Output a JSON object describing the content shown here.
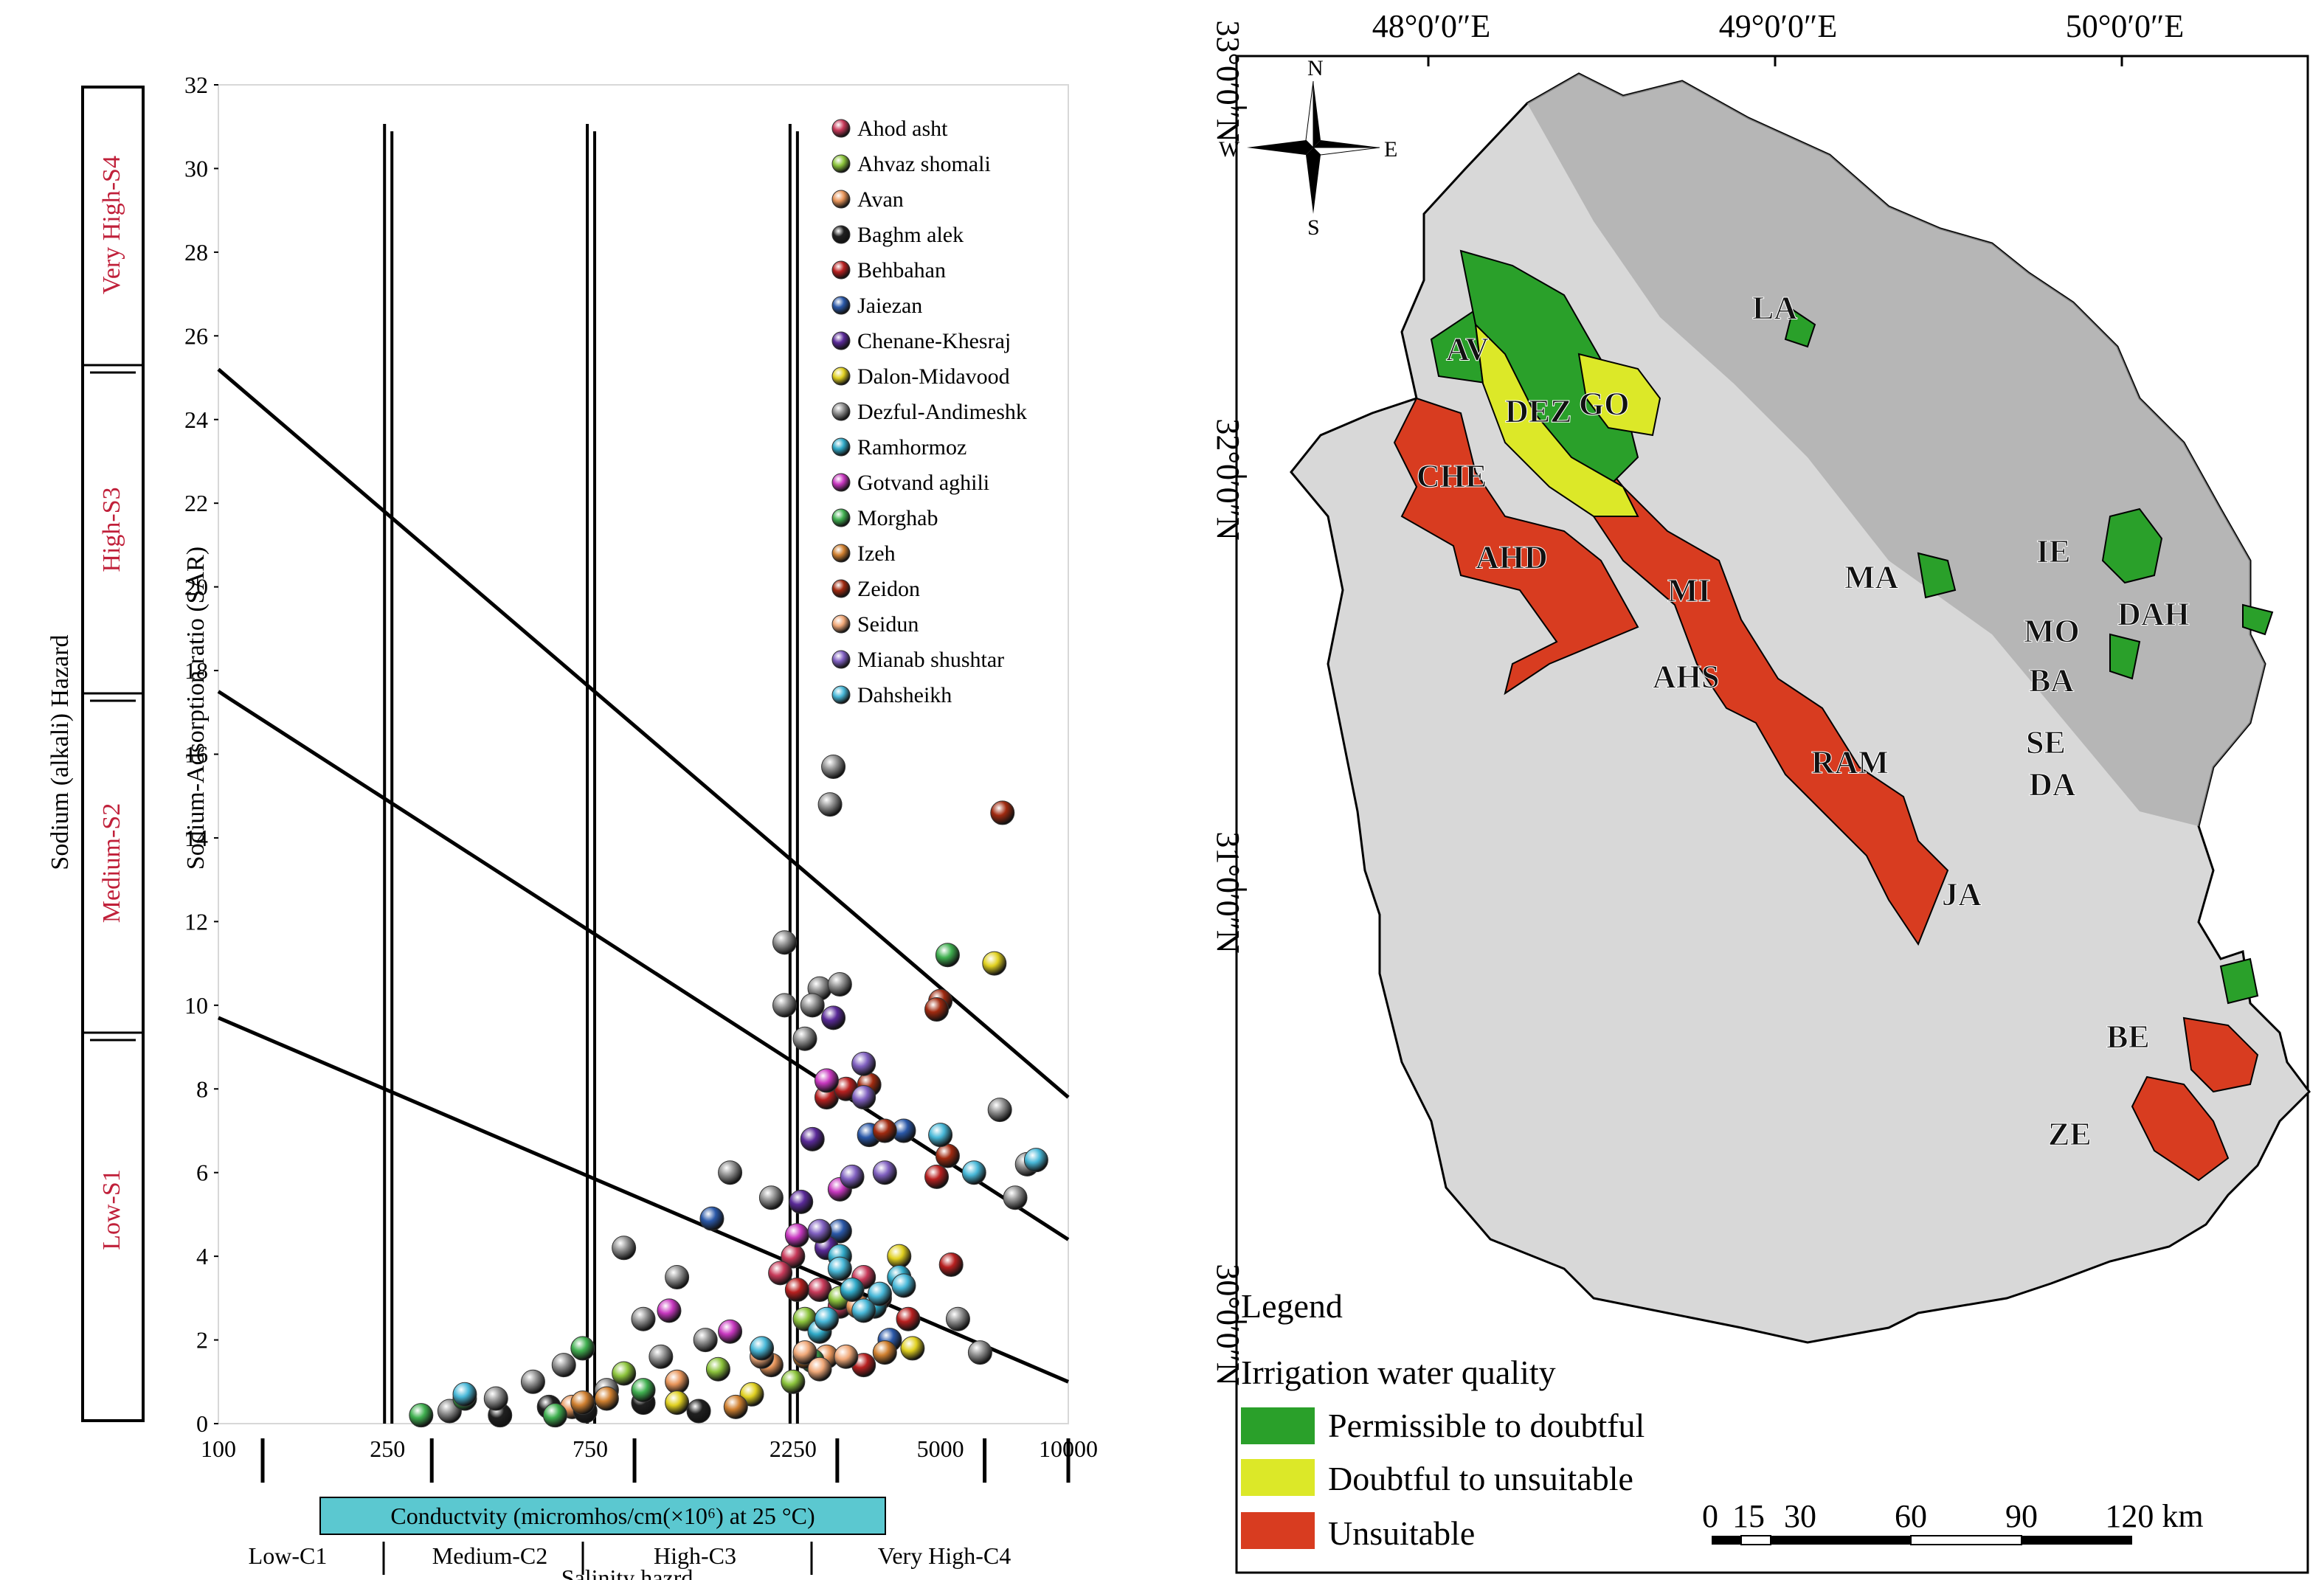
{
  "wilcox": {
    "y_axis_title": "Sodium-Adsorption ratio (SAR)",
    "hazard_title": "Sodium (alkali) Hazard",
    "hazard_classes": [
      "Low-S1",
      "Medium-S2",
      "High-S3",
      "Very High-S4"
    ],
    "x_box_label": "Conductvity (micromhos/cm(×10⁶) at 25 °C)",
    "salinity_title": "Salinity hazrd",
    "salinity_classes": [
      "Low-C1",
      "Medium-C2",
      "High-C3",
      "Very High-C4"
    ],
    "colors": {
      "hazard_text": "#c0203a",
      "cond_box": "#5bc8d0"
    }
  },
  "chart_data": {
    "type": "scatter",
    "x_scale": "log",
    "xlim": [
      100,
      10000
    ],
    "ylim": [
      0,
      32
    ],
    "x_ticks": [
      100,
      250,
      750,
      2250,
      5000,
      10000
    ],
    "x_tick_labels": [
      "100",
      "250",
      "750",
      "2250",
      "5000",
      "10000"
    ],
    "y_ticks": [
      0,
      2,
      4,
      6,
      8,
      10,
      12,
      14,
      16,
      18,
      20,
      22,
      24,
      26,
      28,
      30,
      32
    ],
    "y_tick_labels": [
      "0",
      "2",
      "4",
      "6",
      "8",
      "10",
      "12",
      "14",
      "16",
      "18",
      "20",
      "22",
      "24",
      "26",
      "28",
      "30",
      "32"
    ],
    "boundary_lines": [
      {
        "x": [
          100,
          10000
        ],
        "y": [
          25.2,
          7.8
        ]
      },
      {
        "x": [
          100,
          10000
        ],
        "y": [
          17.5,
          4.4
        ]
      },
      {
        "x": [
          100,
          10000
        ],
        "y": [
          9.7,
          1.0
        ]
      }
    ],
    "class_dividers_x": [
      250,
      750,
      2250
    ],
    "legend_position": "top-right",
    "series": [
      {
        "name": "Ahod asht",
        "color": "#c83a5a",
        "points": [
          [
            2250,
            4.0
          ],
          [
            2600,
            3.2
          ],
          [
            2900,
            2.8
          ],
          [
            3300,
            3.5
          ],
          [
            2100,
            3.6
          ]
        ]
      },
      {
        "name": "Ahvaz shomali",
        "color": "#8cc43c",
        "points": [
          [
            2250,
            1.0
          ],
          [
            1500,
            1.3
          ],
          [
            2400,
            2.5
          ],
          [
            900,
            1.2
          ],
          [
            2900,
            3.0
          ]
        ]
      },
      {
        "name": "Avan",
        "color": "#e8955a",
        "points": [
          [
            680,
            0.4
          ],
          [
            1200,
            1.0
          ],
          [
            2000,
            1.4
          ],
          [
            2700,
            1.6
          ],
          [
            3200,
            2.8
          ]
        ]
      },
      {
        "name": "Baghm alek",
        "color": "#202020",
        "points": [
          [
            460,
            0.2
          ],
          [
            600,
            0.4
          ],
          [
            730,
            0.3
          ],
          [
            1000,
            0.5
          ],
          [
            1350,
            0.3
          ]
        ]
      },
      {
        "name": "Behbahan",
        "color": "#b82020",
        "points": [
          [
            4200,
            2.5
          ],
          [
            2700,
            7.8
          ],
          [
            3600,
            3.0
          ],
          [
            5300,
            3.8
          ],
          [
            4900,
            5.9
          ],
          [
            3300,
            1.4
          ],
          [
            3000,
            8.0
          ],
          [
            2300,
            3.2
          ]
        ]
      },
      {
        "name": "Jaiezan",
        "color": "#2a58a8",
        "points": [
          [
            1450,
            4.9
          ],
          [
            2900,
            4.6
          ],
          [
            3800,
            2.0
          ],
          [
            3400,
            6.9
          ],
          [
            4100,
            7.0
          ]
        ]
      },
      {
        "name": "Chenane-Khesraj",
        "color": "#5a2a98",
        "points": [
          [
            2800,
            9.7
          ],
          [
            2350,
            5.3
          ],
          [
            2700,
            4.2
          ],
          [
            2500,
            6.8
          ]
        ]
      },
      {
        "name": "Dalon-Midavood",
        "color": "#e0d020",
        "points": [
          [
            6700,
            11.0
          ],
          [
            4000,
            4.0
          ],
          [
            4300,
            1.8
          ],
          [
            1800,
            0.7
          ],
          [
            1200,
            0.5
          ]
        ]
      },
      {
        "name": "Dezful-Andimeshk",
        "color": "#909090",
        "points": [
          [
            2800,
            15.7
          ],
          [
            2750,
            14.8
          ],
          [
            2150,
            11.5
          ],
          [
            2150,
            10.0
          ],
          [
            2400,
            9.2
          ],
          [
            2600,
            10.4
          ],
          [
            2900,
            10.5
          ],
          [
            2500,
            10.0
          ],
          [
            6900,
            7.5
          ],
          [
            8000,
            6.2
          ],
          [
            1600,
            6.0
          ],
          [
            2000,
            5.4
          ],
          [
            900,
            4.2
          ],
          [
            1200,
            3.5
          ],
          [
            1000,
            2.5
          ],
          [
            650,
            1.4
          ],
          [
            550,
            1.0
          ],
          [
            820,
            0.8
          ],
          [
            450,
            0.6
          ],
          [
            350,
            0.3
          ],
          [
            5500,
            2.5
          ],
          [
            6200,
            1.7
          ],
          [
            7500,
            5.4
          ],
          [
            1400,
            2.0
          ],
          [
            1100,
            1.6
          ]
        ]
      },
      {
        "name": "Ramhormoz",
        "color": "#30aac8",
        "points": [
          [
            2900,
            4.0
          ],
          [
            3500,
            2.8
          ],
          [
            3100,
            3.2
          ],
          [
            2600,
            2.2
          ],
          [
            4000,
            3.5
          ]
        ]
      },
      {
        "name": "Gotvand aghili",
        "color": "#c838c0",
        "points": [
          [
            2700,
            8.2
          ],
          [
            1150,
            2.7
          ],
          [
            1600,
            2.2
          ],
          [
            2900,
            5.6
          ],
          [
            2300,
            4.5
          ]
        ]
      },
      {
        "name": "Morghab",
        "color": "#40b050",
        "points": [
          [
            5200,
            11.2
          ],
          [
            720,
            1.8
          ],
          [
            300,
            0.2
          ],
          [
            380,
            0.6
          ],
          [
            620,
            0.2
          ],
          [
            1000,
            0.8
          ],
          [
            2500,
            1.5
          ]
        ]
      },
      {
        "name": "Izeh",
        "color": "#d08030",
        "points": [
          [
            720,
            0.5
          ],
          [
            820,
            0.6
          ],
          [
            1650,
            0.4
          ],
          [
            2400,
            1.6
          ],
          [
            3700,
            1.7
          ]
        ]
      },
      {
        "name": "Zeidon",
        "color": "#a02a10",
        "points": [
          [
            7000,
            14.6
          ],
          [
            5000,
            10.1
          ],
          [
            4900,
            9.9
          ],
          [
            3400,
            8.1
          ],
          [
            3700,
            7.0
          ],
          [
            5200,
            6.4
          ]
        ]
      },
      {
        "name": "Seidun",
        "color": "#f0a878",
        "points": [
          [
            2400,
            1.7
          ],
          [
            2600,
            1.3
          ],
          [
            3000,
            1.6
          ],
          [
            1900,
            1.6
          ]
        ]
      },
      {
        "name": "Mianab shushtar",
        "color": "#8060c0",
        "points": [
          [
            3300,
            8.6
          ],
          [
            3700,
            6.0
          ],
          [
            3100,
            5.9
          ],
          [
            2600,
            4.6
          ],
          [
            3300,
            7.8
          ]
        ]
      },
      {
        "name": "Dahsheikh",
        "color": "#48b8d8",
        "points": [
          [
            3600,
            3.1
          ],
          [
            4100,
            3.3
          ],
          [
            2900,
            3.7
          ],
          [
            5000,
            6.9
          ],
          [
            8400,
            6.3
          ],
          [
            6000,
            6.0
          ],
          [
            1900,
            1.8
          ],
          [
            2700,
            2.5
          ],
          [
            3300,
            2.7
          ],
          [
            380,
            0.7
          ]
        ]
      }
    ]
  },
  "map": {
    "lon_labels": [
      "48°0′0″E",
      "49°0′0″E",
      "50°0′0″E"
    ],
    "lat_labels": [
      "33°0′0″N",
      "32°0′0″N",
      "31°0′0″N",
      "30°0′0″N"
    ],
    "compass": {
      "n": "N",
      "s": "S",
      "e": "E",
      "w": "W"
    },
    "regions": [
      {
        "label": "AV",
        "quality": "Permissible to doubtful"
      },
      {
        "label": "DEZ",
        "quality": "Permissible to doubtful"
      },
      {
        "label": "GO",
        "quality": "Doubtful to unsuitable"
      },
      {
        "label": "LA",
        "quality": "Permissible to doubtful"
      },
      {
        "label": "CHE",
        "quality": "Unsuitable"
      },
      {
        "label": "AHD",
        "quality": "Unsuitable"
      },
      {
        "label": "MI",
        "quality": "Unsuitable"
      },
      {
        "label": "AHS",
        "quality": "Unsuitable"
      },
      {
        "label": "MA",
        "quality": "Permissible to doubtful"
      },
      {
        "label": "IE",
        "quality": "Permissible to doubtful"
      },
      {
        "label": "MO",
        "quality": "Permissible to doubtful"
      },
      {
        "label": "BA",
        "quality": "Permissible to doubtful"
      },
      {
        "label": "SE",
        "quality": "Unsuitable"
      },
      {
        "label": "DA",
        "quality": "Unsuitable"
      },
      {
        "label": "DAH",
        "quality": "Permissible to doubtful"
      },
      {
        "label": "RAM",
        "quality": "Unsuitable"
      },
      {
        "label": "JA",
        "quality": "Unsuitable"
      },
      {
        "label": "BE",
        "quality": "Unsuitable"
      },
      {
        "label": "ZE",
        "quality": "Unsuitable"
      }
    ],
    "legend": {
      "title": "Legend",
      "subtitle": "Irrigation water quality",
      "items": [
        {
          "label": "Permissible to doubtful",
          "color": "#2aa02a"
        },
        {
          "label": "Doubtful to unsuitable",
          "color": "#dce828"
        },
        {
          "label": "Unsuitable",
          "color": "#d83c20"
        }
      ]
    },
    "scale_bar": {
      "labels": [
        "0",
        "15",
        "30",
        "60",
        "90",
        "120 km"
      ]
    }
  }
}
